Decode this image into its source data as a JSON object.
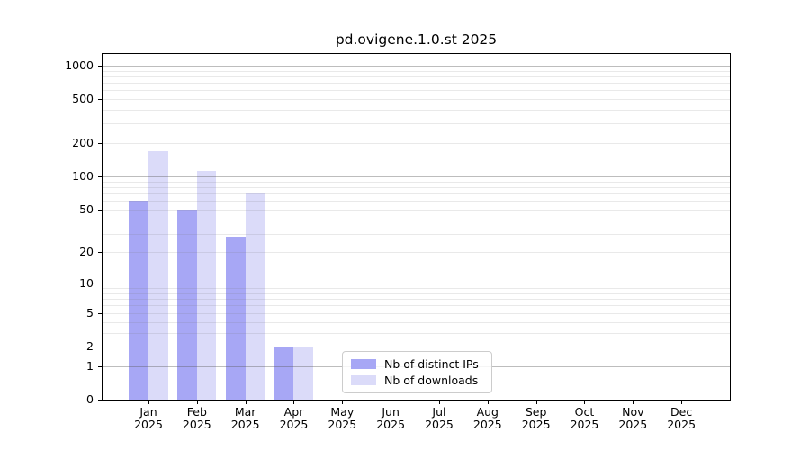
{
  "chart_data": {
    "type": "bar",
    "title": "pd.ovigene.1.0.st 2025",
    "categories": [
      "Jan",
      "Feb",
      "Mar",
      "Apr",
      "May",
      "Jun",
      "Jul",
      "Aug",
      "Sep",
      "Oct",
      "Nov",
      "Dec"
    ],
    "year_label": "2025",
    "series": [
      {
        "name": "Nb of distinct IPs",
        "color": "#a7a7f5",
        "values": [
          60,
          50,
          28,
          2,
          0,
          0,
          0,
          0,
          0,
          0,
          0,
          0
        ]
      },
      {
        "name": "Nb of downloads",
        "color": "#dbdbf9",
        "values": [
          170,
          112,
          70,
          2,
          0,
          0,
          0,
          0,
          0,
          0,
          0,
          0
        ]
      }
    ],
    "y_axis": {
      "scale": "log10(1+x)",
      "ticks": [
        0,
        1,
        2,
        5,
        10,
        20,
        50,
        100,
        200,
        500,
        1000
      ],
      "ylim": [
        0,
        1300
      ]
    },
    "x_axis": {
      "tick_label_format": "month newline year"
    },
    "legend": {
      "position": "bottom-center",
      "entries": [
        "Nb of distinct IPs",
        "Nb of downloads"
      ]
    },
    "grid": {
      "horizontal": true,
      "major_at": [
        1,
        10,
        100,
        1000
      ],
      "minor_at": "2-9 per decade"
    }
  },
  "colors": {
    "background": "#ffffff",
    "axis": "#000000",
    "major_grid": "#b9b9b9",
    "minor_grid": "#e9e9e9",
    "bar_distinct_ips": "#a7a7f5",
    "bar_downloads": "#dbdbf9",
    "legend_border": "#cccccc"
  }
}
